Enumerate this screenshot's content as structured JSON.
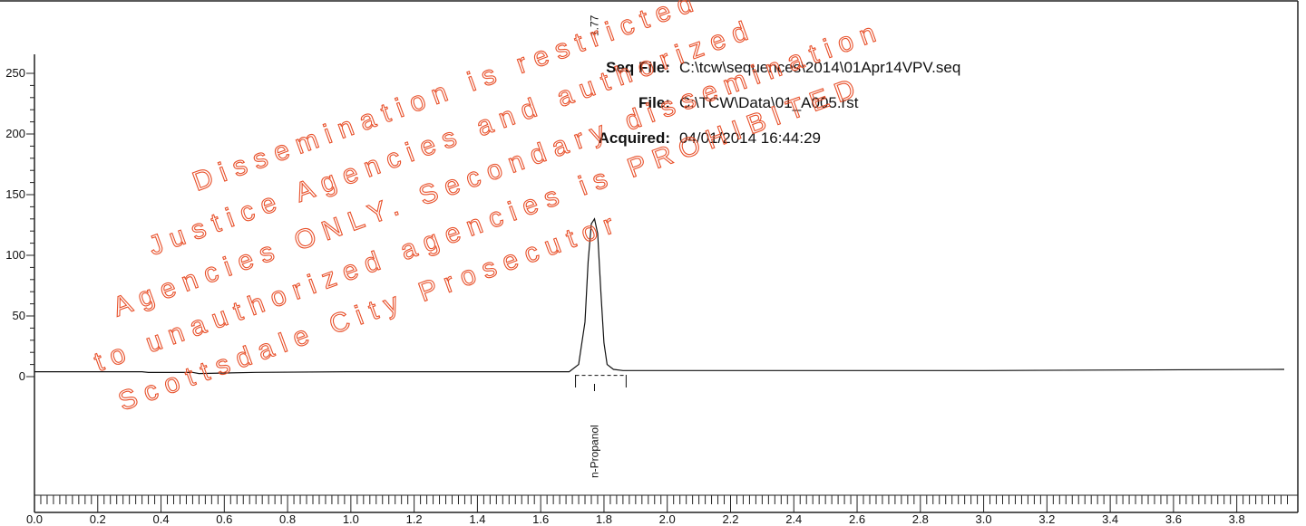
{
  "header": {
    "seq_file_label": "Seq File:",
    "seq_file_value": "C:\\tcw\\sequences\\2014\\01Apr14VPV.seq",
    "file_label": "File:",
    "file_value": "C:\\TCW\\Data\\01_A005.rst",
    "acquired_label": "Acquired:",
    "acquired_value": "04/01/2014 16:44:29"
  },
  "watermark": {
    "color": "#e8502a",
    "lines": [
      "Dissemination is restricted",
      "Justice Agencies and authorized",
      "Agencies ONLY. Secondary dissemination",
      "to unauthorized agencies is PROHIBITED",
      "Scottsdale City Prosecutor"
    ]
  },
  "chart_data": {
    "type": "line",
    "title": "",
    "xlabel": "",
    "ylabel": "",
    "xlim": [
      0.0,
      3.95
    ],
    "ylim": [
      -125,
      265
    ],
    "x_tick_labels": [
      "0.0",
      "0.2",
      "0.4",
      "0.6",
      "0.8",
      "1.0",
      "1.2",
      "1.4",
      "1.6",
      "1.8",
      "2.0",
      "2.2",
      "2.4",
      "2.6",
      "2.8",
      "3.0",
      "3.2",
      "3.4",
      "3.6",
      "3.8"
    ],
    "y_tick_labels": [
      "0",
      "50",
      "100",
      "150",
      "200",
      "250"
    ],
    "series": [
      {
        "name": "",
        "x": [
          0.0,
          0.34,
          0.36,
          0.5,
          0.52,
          0.7,
          1.0,
          1.5,
          1.69,
          1.72,
          1.74,
          1.75,
          1.76,
          1.77,
          1.78,
          1.79,
          1.8,
          1.81,
          1.83,
          1.86,
          1.88,
          2.2,
          3.0,
          3.95
        ],
        "y": [
          4,
          4,
          3.4,
          3.5,
          2.5,
          3.5,
          4,
          4,
          4,
          10,
          45,
          95,
          126,
          130,
          118,
          70,
          28,
          10,
          6,
          5,
          5,
          5,
          5,
          6
        ]
      }
    ],
    "peaks": [
      {
        "retention_time_label": "1.77",
        "name": "n-Propanol",
        "x": 1.77,
        "start": 1.71,
        "end": 1.87
      }
    ]
  }
}
